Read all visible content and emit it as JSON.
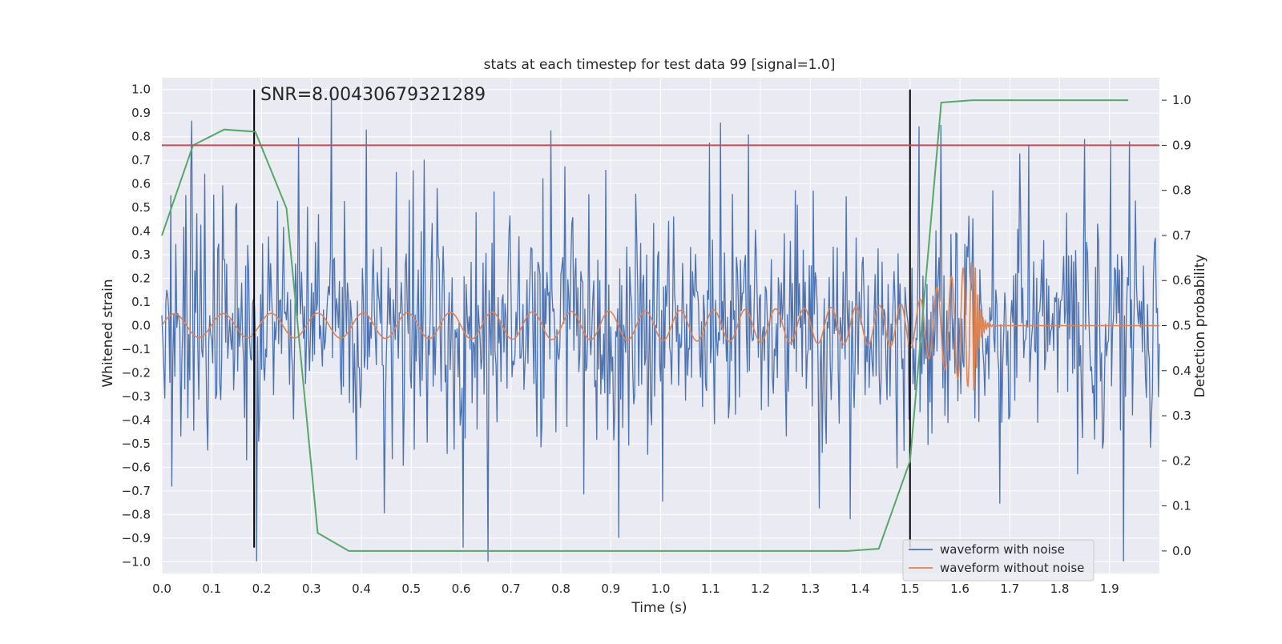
{
  "chart_data": {
    "type": "line",
    "title": "stats at each timestep for test data 99 [signal=1.0]",
    "xlabel": "Time (s)",
    "ylabel_left": "Whitened strain",
    "ylabel_right": "Detection probability",
    "xlim": [
      0.0,
      2.0
    ],
    "ylim_left": [
      -1.05,
      1.05
    ],
    "ylim_right": [
      -0.05,
      1.05
    ],
    "x_ticks": [
      "0.0",
      "0.1",
      "0.2",
      "0.3",
      "0.4",
      "0.5",
      "0.6",
      "0.7",
      "0.8",
      "0.9",
      "1.0",
      "1.1",
      "1.2",
      "1.3",
      "1.4",
      "1.5",
      "1.6",
      "1.7",
      "1.8",
      "1.9"
    ],
    "y_ticks_left": [
      "1.0",
      "0.9",
      "0.8",
      "0.7",
      "0.6",
      "0.5",
      "0.4",
      "0.3",
      "0.2",
      "0.1",
      "0.0",
      "−0.1",
      "−0.2",
      "−0.3",
      "−0.4",
      "−0.5",
      "−0.6",
      "−0.7",
      "−0.8",
      "−0.9",
      "−1.0"
    ],
    "y_ticks_right": [
      "1.0",
      "0.9",
      "0.8",
      "0.7",
      "0.6",
      "0.5",
      "0.4",
      "0.3",
      "0.2",
      "0.1",
      "0.0"
    ],
    "annotation": "SNR=8.00430679321289",
    "grid": true,
    "legend_position": "lower-right",
    "colors": {
      "noisy": "#4c72b0",
      "clean": "#dd8452",
      "probability": "#55a868",
      "threshold": "#c44e52",
      "markers": "#000000",
      "plot_bg": "#eaeaf2",
      "grid": "#ffffff"
    },
    "series": [
      {
        "name": "waveform with noise",
        "axis": "left",
        "kind": "noise",
        "sample_dt": 0.002,
        "typical_amplitude": 0.32,
        "peak_amplitude": 1.0
      },
      {
        "name": "waveform without noise",
        "axis": "left",
        "kind": "chirp",
        "amplitude_start": 0.05,
        "amplitude_peak": 0.28,
        "merger_time": 1.63,
        "ringdown_level": 0.0
      },
      {
        "name": "detection probability",
        "axis": "right",
        "show_in_legend": false,
        "x": [
          0.0,
          0.0625,
          0.125,
          0.1875,
          0.25,
          0.3125,
          0.375,
          0.4375,
          0.5,
          0.625,
          0.75,
          0.875,
          1.0,
          1.125,
          1.25,
          1.375,
          1.4375,
          1.5,
          1.5625,
          1.625,
          1.6875,
          1.75,
          1.8125,
          1.875,
          1.9375
        ],
        "values": [
          0.7,
          0.9,
          0.935,
          0.93,
          0.76,
          0.04,
          0.0,
          0.0,
          0.0,
          0.0,
          0.0,
          0.0,
          0.0,
          0.0,
          0.0,
          0.0,
          0.005,
          0.2,
          0.995,
          1.0,
          1.0,
          1.0,
          1.0,
          1.0,
          1.0
        ]
      }
    ],
    "threshold_right": 0.9,
    "vertical_markers": [
      {
        "x": 0.185,
        "y_from": -0.94,
        "y_to": 1.0
      },
      {
        "x": 1.5,
        "y_from": -0.94,
        "y_to": 1.0
      }
    ]
  }
}
